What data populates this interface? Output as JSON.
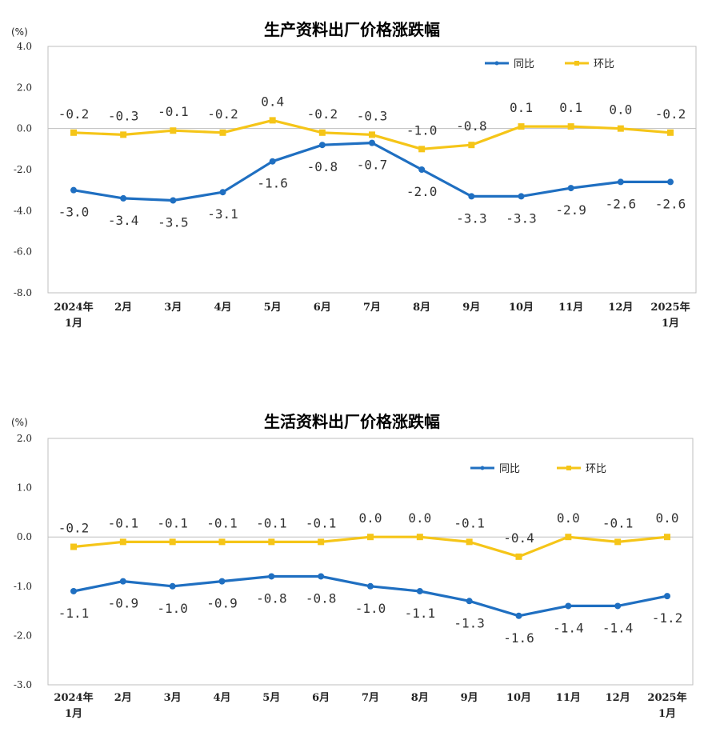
{
  "chart_data": [
    {
      "type": "line",
      "title": "生产资料出厂价格涨跌幅",
      "unit": "(%)",
      "categories": [
        [
          "2024年",
          "1月"
        ],
        [
          "2月"
        ],
        [
          "3月"
        ],
        [
          "4月"
        ],
        [
          "5月"
        ],
        [
          "6月"
        ],
        [
          "7月"
        ],
        [
          "8月"
        ],
        [
          "9月"
        ],
        [
          "10月"
        ],
        [
          "11月"
        ],
        [
          "12月"
        ],
        [
          "2025年",
          "1月"
        ]
      ],
      "ylim": [
        -8.0,
        4.0
      ],
      "yticks": [
        4.0,
        2.0,
        0.0,
        -2.0,
        -4.0,
        -6.0,
        -8.0
      ],
      "ytick_labels": [
        "4.0",
        "2.0",
        "0.0",
        "-2.0",
        "-4.0",
        "-6.0",
        "-8.0"
      ],
      "legend_position": "top-right",
      "series": [
        {
          "name": "同比",
          "color": "#1f6fc1",
          "values": [
            -3.0,
            -3.4,
            -3.5,
            -3.1,
            -1.6,
            -0.8,
            -0.7,
            -2.0,
            -3.3,
            -3.3,
            -2.9,
            -2.6,
            -2.6
          ],
          "labels": [
            "-3.0",
            "-3.4",
            "-3.5",
            "-3.1",
            "-1.6",
            "-0.8",
            "-0.7",
            "-2.0",
            "-3.3",
            "-3.3",
            "-2.9",
            "-2.6",
            "-2.6"
          ],
          "label_side": [
            "below",
            "below",
            "below",
            "below",
            "below",
            "below",
            "below",
            "below",
            "below",
            "below",
            "below",
            "below",
            "below"
          ]
        },
        {
          "name": "环比",
          "color": "#f5c518",
          "values": [
            -0.2,
            -0.3,
            -0.1,
            -0.2,
            0.4,
            -0.2,
            -0.3,
            -1.0,
            -0.8,
            0.1,
            0.1,
            0.0,
            -0.2
          ],
          "labels": [
            "-0.2",
            "-0.3",
            "-0.1",
            "-0.2",
            "0.4",
            "-0.2",
            "-0.3",
            "-1.0",
            "-0.8",
            "0.1",
            "0.1",
            "0.0",
            "-0.2"
          ],
          "label_side": [
            "above",
            "above",
            "above",
            "above",
            "above",
            "above",
            "above",
            "above",
            "above",
            "above",
            "above",
            "above",
            "above"
          ]
        }
      ]
    },
    {
      "type": "line",
      "title": "生活资料出厂价格涨跌幅",
      "unit": "(%)",
      "categories": [
        [
          "2024年",
          "1月"
        ],
        [
          "2月"
        ],
        [
          "3月"
        ],
        [
          "4月"
        ],
        [
          "5月"
        ],
        [
          "6月"
        ],
        [
          "7月"
        ],
        [
          "8月"
        ],
        [
          "9月"
        ],
        [
          "10月"
        ],
        [
          "11月"
        ],
        [
          "12月"
        ],
        [
          "2025年",
          "1月"
        ]
      ],
      "ylim": [
        -3.0,
        2.0
      ],
      "yticks": [
        2.0,
        1.0,
        0.0,
        -1.0,
        -2.0,
        -3.0
      ],
      "ytick_labels": [
        "2.0",
        "1.0",
        "0.0",
        "-1.0",
        "-2.0",
        "-3.0"
      ],
      "legend_position": "top-right",
      "series": [
        {
          "name": "同比",
          "color": "#1f6fc1",
          "values": [
            -1.1,
            -0.9,
            -1.0,
            -0.9,
            -0.8,
            -0.8,
            -1.0,
            -1.1,
            -1.3,
            -1.6,
            -1.4,
            -1.4,
            -1.2
          ],
          "labels": [
            "-1.1",
            "-0.9",
            "-1.0",
            "-0.9",
            "-0.8",
            "-0.8",
            "-1.0",
            "-1.1",
            "-1.3",
            "-1.6",
            "-1.4",
            "-1.4",
            "-1.2"
          ],
          "label_side": [
            "below",
            "below",
            "below",
            "below",
            "below",
            "below",
            "below",
            "below",
            "below",
            "below",
            "below",
            "below",
            "below"
          ]
        },
        {
          "name": "环比",
          "color": "#f5c518",
          "values": [
            -0.2,
            -0.1,
            -0.1,
            -0.1,
            -0.1,
            -0.1,
            0.0,
            0.0,
            -0.1,
            -0.4,
            0.0,
            -0.1,
            0.0
          ],
          "labels": [
            "-0.2",
            "-0.1",
            "-0.1",
            "-0.1",
            "-0.1",
            "-0.1",
            "0.0",
            "0.0",
            "-0.1",
            "-0.4",
            "0.0",
            "-0.1",
            "0.0"
          ],
          "label_side": [
            "above",
            "above",
            "above",
            "above",
            "above",
            "above",
            "above",
            "above",
            "above",
            "above",
            "above",
            "above",
            "above"
          ]
        }
      ]
    }
  ]
}
